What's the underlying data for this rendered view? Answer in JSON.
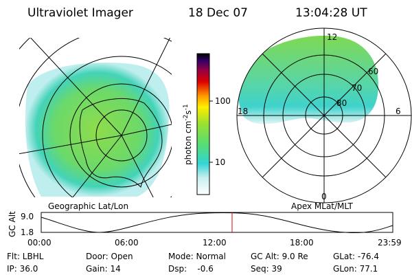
{
  "header": {
    "title": "Ultraviolet Imager",
    "date": "18 Dec 07",
    "time": "13:04:28 UT"
  },
  "left_panel": {
    "label": "Geographic Lat/Lon"
  },
  "right_panel": {
    "label": "Apex MLat/MLT",
    "mlt_labels": [
      "12",
      "18",
      "6",
      "0"
    ],
    "lat_labels": [
      "60",
      "70",
      "80"
    ]
  },
  "colorbar": {
    "label_parts": [
      "photon cm",
      "-2",
      "s",
      "-1"
    ],
    "ticks": [
      "100",
      "10"
    ]
  },
  "altitude_plot": {
    "ylabel": "GC Alt",
    "yticks": [
      "9.0",
      "1.8"
    ],
    "xticks": [
      "00:00",
      "06:00",
      "12:00",
      "18:00",
      "23:59"
    ]
  },
  "info": {
    "rows": [
      [
        "Flt: LBHL",
        "Door: Open",
        "Mode: Normal",
        "GC Alt: 9.0 Re",
        "GLat: -76.4"
      ],
      [
        "IP: 36.0",
        "Gain: 14",
        "Dsp:    -0.6",
        "Seq: 39",
        "GLon: 77.1"
      ]
    ]
  }
}
